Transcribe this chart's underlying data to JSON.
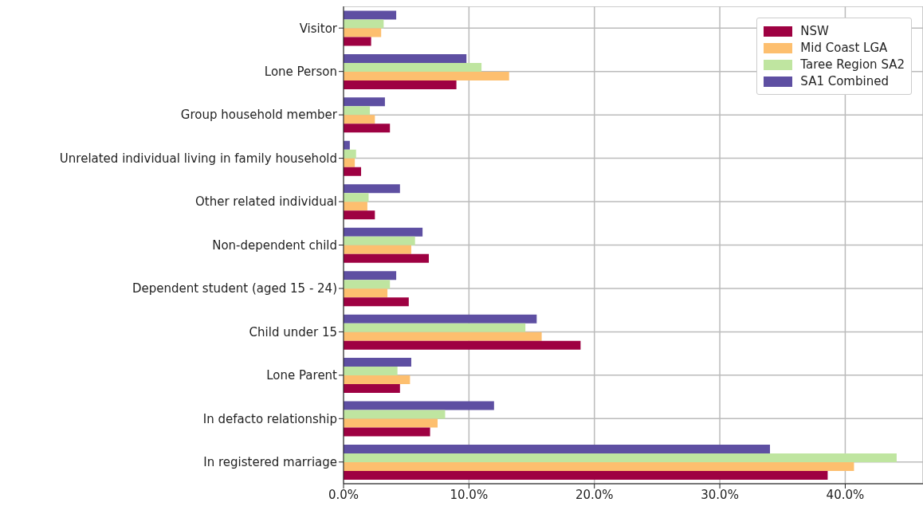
{
  "chart_data": {
    "type": "bar",
    "orientation": "horizontal",
    "categories": [
      "Visitor",
      "Lone Person",
      "Group household member",
      "Unrelated individual living in family household",
      "Other related individual",
      "Non-dependent child",
      "Dependent student (aged 15 - 24)",
      "Child under 15",
      "Lone Parent",
      "In defacto relationship",
      "In registered marriage"
    ],
    "series": [
      {
        "name": "NSW",
        "color": "#9e0142",
        "values": [
          2.2,
          9.0,
          3.7,
          1.4,
          2.5,
          6.8,
          5.2,
          18.9,
          4.5,
          6.9,
          38.6
        ]
      },
      {
        "name": "Mid Coast LGA",
        "color": "#fdbf6f",
        "values": [
          3.0,
          13.2,
          2.5,
          0.9,
          1.9,
          5.4,
          3.5,
          15.8,
          5.3,
          7.5,
          40.7
        ]
      },
      {
        "name": "Taree Region SA2",
        "color": "#bfe5a0",
        "values": [
          3.2,
          11.0,
          2.1,
          1.0,
          2.0,
          5.7,
          3.7,
          14.5,
          4.3,
          8.1,
          44.1
        ]
      },
      {
        "name": "SA1 Combined",
        "color": "#5e4fa2",
        "values": [
          4.2,
          9.8,
          3.3,
          0.5,
          4.5,
          6.3,
          4.2,
          15.4,
          5.4,
          12.0,
          34.0
        ]
      }
    ],
    "xlim": [
      0,
      46.2
    ],
    "xticks": [
      {
        "value": 0,
        "label": "0.0%"
      },
      {
        "value": 10,
        "label": "10.0%"
      },
      {
        "value": 20,
        "label": "20.0%"
      },
      {
        "value": 30,
        "label": "30.0%"
      },
      {
        "value": 40,
        "label": "40.0%"
      }
    ],
    "grid": true,
    "legend": "top right"
  }
}
